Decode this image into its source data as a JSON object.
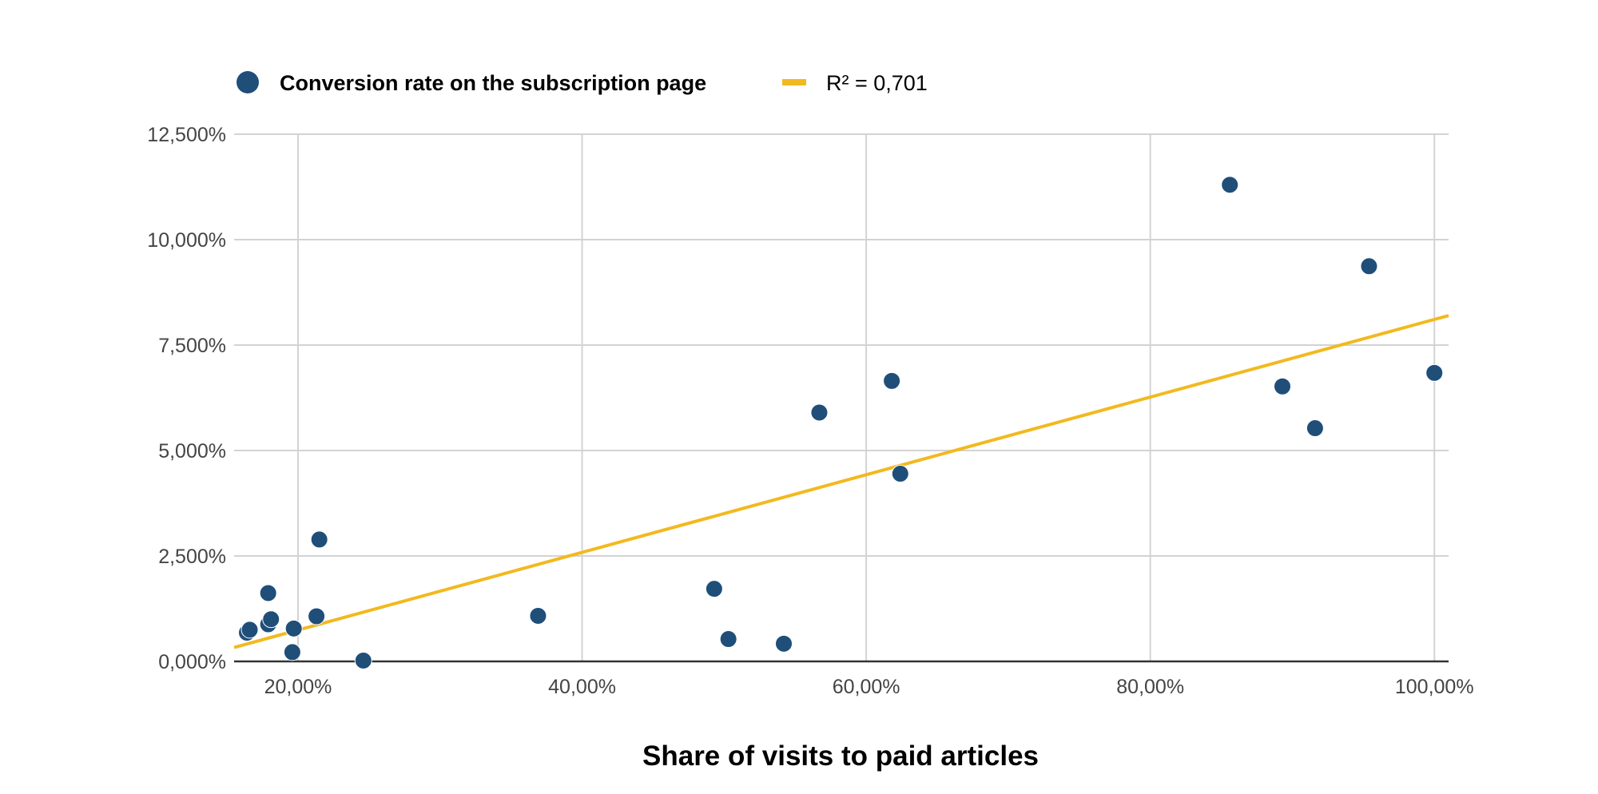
{
  "chart_data": {
    "type": "scatter",
    "xlabel": "Share of visits to paid articles",
    "ylabel": "",
    "xlim": [
      15.5,
      101
    ],
    "ylim": [
      0,
      12.5
    ],
    "x_ticks": [
      {
        "value": 20,
        "label": "20,00%"
      },
      {
        "value": 40,
        "label": "40,00%"
      },
      {
        "value": 60,
        "label": "60,00%"
      },
      {
        "value": 80,
        "label": "80,00%"
      },
      {
        "value": 100,
        "label": "100,00%"
      }
    ],
    "y_ticks": [
      {
        "value": 0,
        "label": "0,000%"
      },
      {
        "value": 2.5,
        "label": "2,500%"
      },
      {
        "value": 5,
        "label": "5,000%"
      },
      {
        "value": 7.5,
        "label": "7,500%"
      },
      {
        "value": 10,
        "label": "10,000%"
      },
      {
        "value": 12.5,
        "label": "12,500%"
      }
    ],
    "grid": true,
    "legend_position": "top-left",
    "series": [
      {
        "name": "Conversion rate on the subscription page",
        "color": "#1f4e79",
        "points": [
          {
            "x": 16.4,
            "y": 0.68
          },
          {
            "x": 16.6,
            "y": 0.75
          },
          {
            "x": 17.9,
            "y": 1.62
          },
          {
            "x": 17.9,
            "y": 0.88
          },
          {
            "x": 18.1,
            "y": 1.0
          },
          {
            "x": 19.6,
            "y": 0.22
          },
          {
            "x": 19.7,
            "y": 0.78
          },
          {
            "x": 21.3,
            "y": 1.07
          },
          {
            "x": 21.5,
            "y": 2.89
          },
          {
            "x": 24.6,
            "y": 0.02
          },
          {
            "x": 36.9,
            "y": 1.08
          },
          {
            "x": 49.3,
            "y": 1.72
          },
          {
            "x": 50.3,
            "y": 0.53
          },
          {
            "x": 54.2,
            "y": 0.42
          },
          {
            "x": 56.7,
            "y": 5.9
          },
          {
            "x": 61.8,
            "y": 6.65
          },
          {
            "x": 62.4,
            "y": 4.45
          },
          {
            "x": 85.6,
            "y": 11.3
          },
          {
            "x": 89.3,
            "y": 6.52
          },
          {
            "x": 91.6,
            "y": 5.53
          },
          {
            "x": 95.4,
            "y": 9.37
          },
          {
            "x": 100.0,
            "y": 6.84
          }
        ]
      }
    ],
    "trendline": {
      "name": "R² = 0,701",
      "color": "#f2b91f",
      "x": [
        15.5,
        101
      ],
      "y": [
        0.33,
        8.2
      ]
    }
  }
}
